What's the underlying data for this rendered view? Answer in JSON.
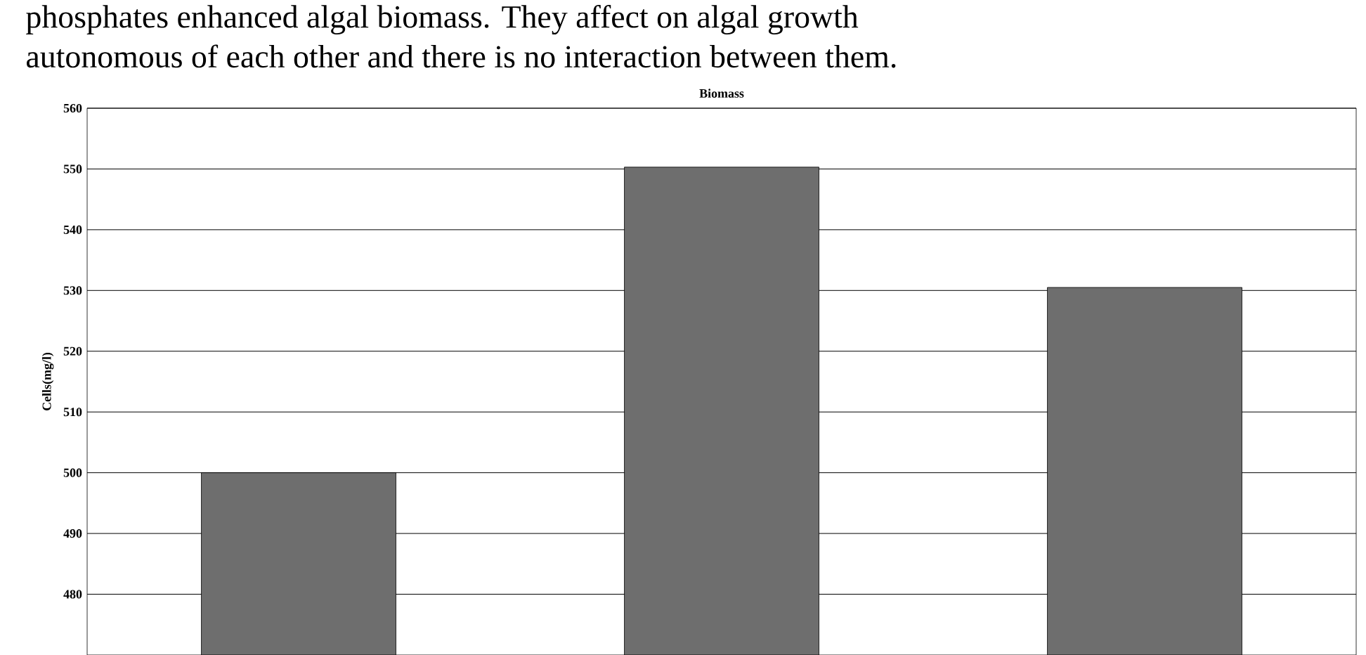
{
  "chart_data": {
    "type": "bar",
    "title": "Biomass",
    "ylabel": "Cells(mg/l)",
    "annotations": [
      "phosphates enhanced algal biomass. They affect on algal growth",
      "autonomous of each other and there is no interaction between them."
    ],
    "categories": [
      null,
      null,
      null
    ],
    "values": [
      500,
      550.3,
      530.5
    ],
    "color": "#6e6e6e",
    "ylim": [
      470,
      560
    ],
    "yticks": [
      480,
      490,
      500,
      510,
      520,
      530,
      540,
      550,
      560
    ],
    "grid": "y",
    "tick_labels": "y"
  }
}
